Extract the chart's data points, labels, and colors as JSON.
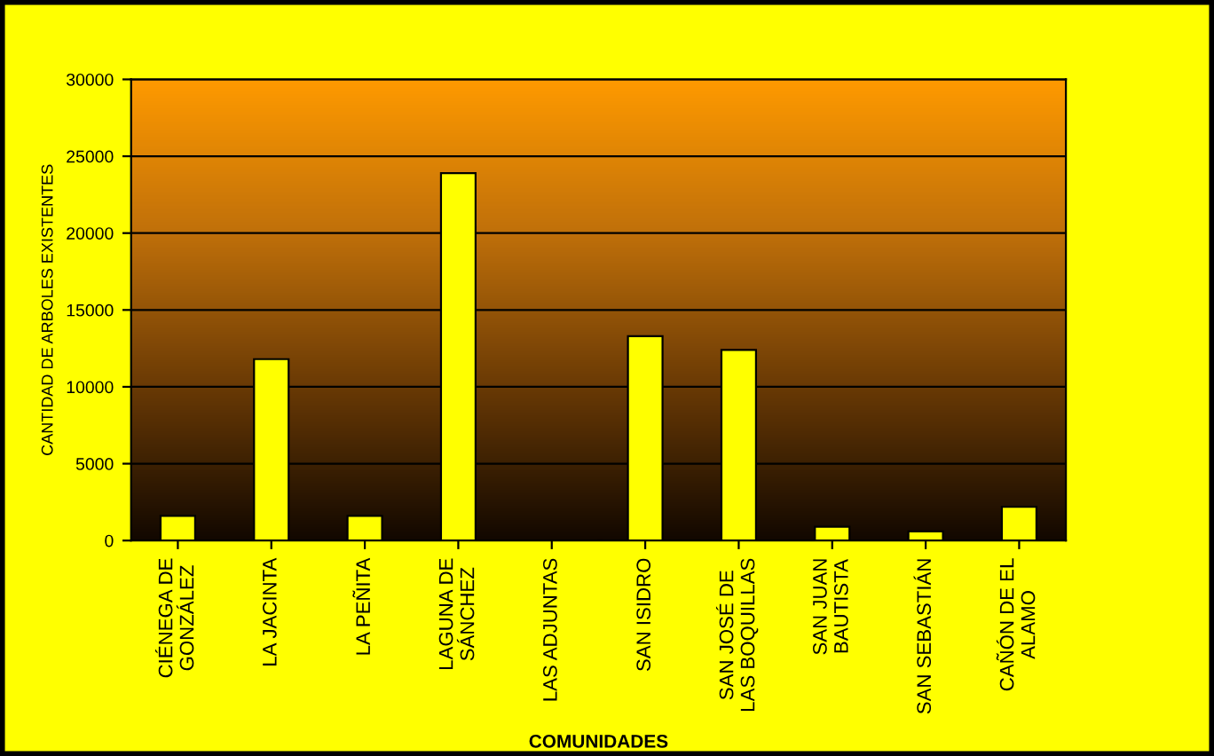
{
  "chart_data": {
    "type": "bar",
    "xlabel": "COMUNIDADES",
    "ylabel": "CANTIDAD DE ARBOLES EXISTENTES",
    "categories": [
      "CIÉNEGA DE\nGONZÁLEZ",
      "LA JACINTA",
      "LA PEÑITA",
      "LAGUNA DE\nSÁNCHEZ",
      "LAS ADJUNTAS",
      "SAN ISIDRO",
      "SAN JOSÉ DE\nLAS BOQUILLAS",
      "SAN JUAN\nBAUTISTA",
      "SAN SEBASTIÁN",
      "CAÑÓN DE EL\nALAMO"
    ],
    "values": [
      1600,
      11800,
      1600,
      23900,
      0,
      13300,
      12400,
      900,
      600,
      2200
    ],
    "color": "#ffff00",
    "ylim": [
      0,
      30000
    ],
    "yticks": [
      0,
      5000,
      10000,
      15000,
      20000,
      25000,
      30000
    ],
    "grid": "y"
  }
}
